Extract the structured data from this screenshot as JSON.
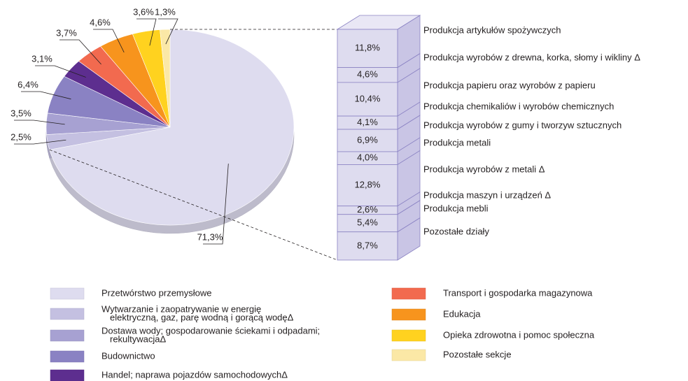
{
  "chart_data": {
    "type": "pie",
    "categories": [
      [
        "Przetwórstwo przemysłowe"
      ],
      [
        "Wytwarzanie i zaopatrywanie w energię",
        "elektryczną, gaz, parę wodną i gorącą wodęΔ"
      ],
      [
        "Dostawa wody; gospodarowanie ściekami i odpadami;",
        "rekultywacjaΔ"
      ],
      [
        "Budownictwo"
      ],
      [
        "Handel; naprawa pojazdów samochodowychΔ"
      ],
      [
        "Transport i gospodarka magazynowa"
      ],
      [
        "Edukacja"
      ],
      [
        "Opieka zdrowotna i pomoc społeczna"
      ],
      [
        "Pozostałe sekcje"
      ]
    ],
    "values": [
      71.3,
      2.5,
      3.5,
      6.4,
      3.1,
      3.7,
      4.6,
      3.6,
      1.3
    ],
    "value_labels": [
      "71,3%",
      "2,5%",
      "3,5%",
      "6,4%",
      "3,1%",
      "3,7%",
      "4,6%",
      "3,6%",
      "1,3%"
    ],
    "colors": [
      "#dedcef",
      "#c4c0e1",
      "#a7a1d2",
      "#8a82c3",
      "#5d2e8f",
      "#f26a4f",
      "#f7941d",
      "#ffd21f",
      "#fbe8a6"
    ],
    "legend": "bottom",
    "bar": {
      "categories": [
        "Produkcja artykułów spożywczych",
        "Produkcja wyrobów z drewna, korka, słomy i wikliny Δ",
        "Produkcja papieru oraz wyrobów z papieru",
        "Produkcja chemikaliów i wyrobów chemicznych",
        "Produkcja wyrobów z gumy i tworzyw sztucznych",
        "Produkcja metali",
        "Produkcja wyrobów z metali Δ",
        "Produkcja maszyn i urządzeń Δ",
        "Produkcja mebli",
        "Pozostałe działy"
      ],
      "values": [
        11.8,
        4.6,
        10.4,
        4.1,
        6.9,
        4.0,
        12.8,
        2.6,
        5.4,
        8.7
      ],
      "value_labels": [
        "11,8%",
        "4,6%",
        "10,4%",
        "4,1%",
        "6,9%",
        "4,0%",
        "12,8%",
        "2,6%",
        "5,4%",
        "8,7%"
      ],
      "color": "#dedcef"
    }
  }
}
